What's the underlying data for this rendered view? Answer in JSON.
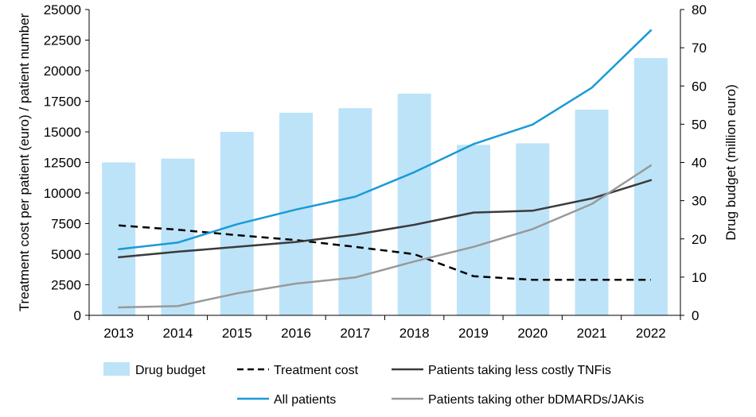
{
  "chart_data": {
    "type": "bar+line",
    "categories": [
      "2013",
      "2014",
      "2015",
      "2016",
      "2017",
      "2018",
      "2019",
      "2020",
      "2021",
      "2022"
    ],
    "y_left": {
      "label": "Treatment cost per patient (euro) / patient number",
      "range": [
        0,
        25000
      ],
      "ticks": [
        0,
        2500,
        5000,
        7500,
        10000,
        12500,
        15000,
        17500,
        20000,
        22500,
        25000
      ],
      "tick_labels": [
        "0",
        "2500",
        "5000",
        "7500",
        "10000",
        "12500",
        "15000",
        "17500",
        "20000",
        "22500",
        "25000"
      ]
    },
    "y_right": {
      "label": "Drug budget (million euro)",
      "range": [
        0,
        80
      ],
      "ticks": [
        0,
        10,
        20,
        30,
        40,
        50,
        60,
        70,
        80
      ],
      "tick_labels": [
        "0",
        "10",
        "20",
        "30",
        "40",
        "50",
        "60",
        "70",
        "80"
      ]
    },
    "bars": {
      "name": "Drug budget",
      "axis": "right",
      "color": "#bde3f8",
      "values": [
        40,
        41,
        48,
        53,
        54.2,
        58,
        44.6,
        45,
        53.8,
        67.3
      ]
    },
    "series": [
      {
        "name": "Treatment cost",
        "axis": "left",
        "style": "dashed",
        "color": "#000000",
        "values": [
          7350,
          7000,
          6550,
          6150,
          5600,
          5000,
          3200,
          2900,
          2900,
          2900
        ]
      },
      {
        "name": "Patients taking less costly TNFis",
        "axis": "left",
        "style": "solid",
        "color": "#3b3b3b",
        "values": [
          4750,
          5200,
          5600,
          6000,
          6600,
          7400,
          8400,
          8550,
          9550,
          11050
        ]
      },
      {
        "name": "All patients",
        "axis": "left",
        "style": "solid",
        "color": "#1a9ad6",
        "values": [
          5400,
          5950,
          7450,
          8650,
          9700,
          11700,
          14000,
          15600,
          18600,
          23300
        ]
      },
      {
        "name": "Patients taking other bDMARDs/JAKis",
        "axis": "left",
        "style": "solid",
        "color": "#999999",
        "values": [
          650,
          750,
          1800,
          2600,
          3100,
          4400,
          5600,
          7050,
          9100,
          12250
        ]
      }
    ],
    "legend": {
      "placement": "bottom",
      "entries": [
        {
          "label": "Drug budget",
          "kind": "bar",
          "color": "#bde3f8"
        },
        {
          "label": "Treatment cost",
          "kind": "dashed",
          "color": "#000000"
        },
        {
          "label": "Patients taking less costly TNFis",
          "kind": "solid",
          "color": "#3b3b3b"
        },
        {
          "label": "All patients",
          "kind": "solid",
          "color": "#1a9ad6"
        },
        {
          "label": "Patients taking other bDMARDs/JAKis",
          "kind": "solid",
          "color": "#999999"
        }
      ]
    },
    "grid": false
  }
}
